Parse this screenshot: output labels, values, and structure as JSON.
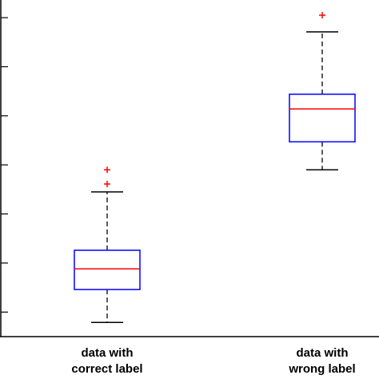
{
  "chart_data": {
    "type": "box",
    "categories": [
      "data with correct label",
      "data with wrong label"
    ],
    "boxes": [
      {
        "min": 0.79,
        "q1": 1.46,
        "median": 1.88,
        "q3": 2.26,
        "max": 3.45,
        "outliers": [
          3.61,
          3.9
        ]
      },
      {
        "min": 3.9,
        "q1": 4.47,
        "median": 5.14,
        "q3": 5.44,
        "max": 6.71,
        "outliers": [
          7.05
        ]
      }
    ],
    "box_color": "#0000ff",
    "median_color": "#ff0000",
    "whisker_color": "#000000",
    "outlier_color": "#ff0000",
    "ylim": [
      0.5,
      7.36
    ],
    "yticks": [
      1,
      2,
      3,
      4,
      5,
      6,
      7
    ]
  }
}
